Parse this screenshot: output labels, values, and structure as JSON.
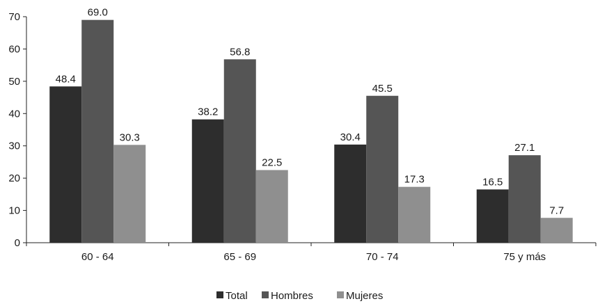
{
  "chart_data": {
    "type": "bar",
    "categories": [
      "60 - 64",
      "65 - 69",
      "70 - 74",
      "75 y más"
    ],
    "series": [
      {
        "name": "Total",
        "values": [
          48.4,
          38.2,
          30.4,
          16.5
        ],
        "labels": [
          "48.4",
          "38.2",
          "30.4",
          "16.5"
        ],
        "color": "#2d2d2d"
      },
      {
        "name": "Hombres",
        "values": [
          69.0,
          56.8,
          45.5,
          27.1
        ],
        "labels": [
          "69.0",
          "56.8",
          "45.5",
          "27.1"
        ],
        "color": "#555555"
      },
      {
        "name": "Mujeres",
        "values": [
          30.3,
          22.5,
          17.3,
          7.7
        ],
        "labels": [
          "30.3",
          "22.5",
          "17.3",
          "7.7"
        ],
        "color": "#8f8f8f"
      }
    ],
    "ylim": [
      0,
      70
    ],
    "yticks": [
      "0",
      "10",
      "20",
      "30",
      "40",
      "50",
      "60",
      "70"
    ],
    "grid": false,
    "legend_position": "bottom"
  }
}
